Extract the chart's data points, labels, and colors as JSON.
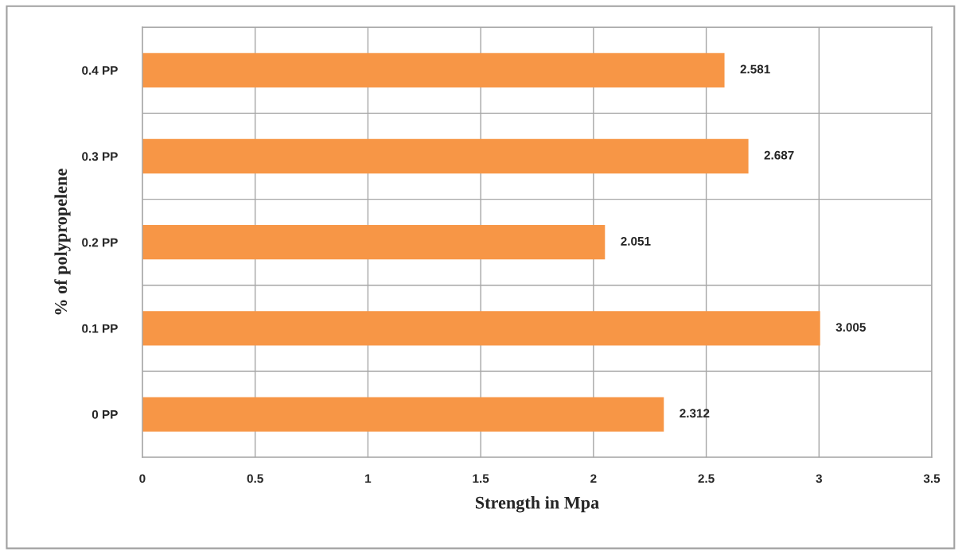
{
  "chart_data": {
    "type": "bar",
    "orientation": "horizontal",
    "xlabel": "Strength in Mpa",
    "ylabel": "% of polypropelene",
    "categories": [
      "0.4 PP",
      "0.3 PP",
      "0.2 PP",
      "0.1 PP",
      "0 PP"
    ],
    "values": [
      2.581,
      2.687,
      2.051,
      3.005,
      2.312
    ],
    "color": "#f79646",
    "xlim": [
      0,
      3.5
    ],
    "xticks": [
      0,
      0.5,
      1,
      1.5,
      2,
      2.5,
      3,
      3.5
    ],
    "grid": true,
    "data_labels": true
  }
}
